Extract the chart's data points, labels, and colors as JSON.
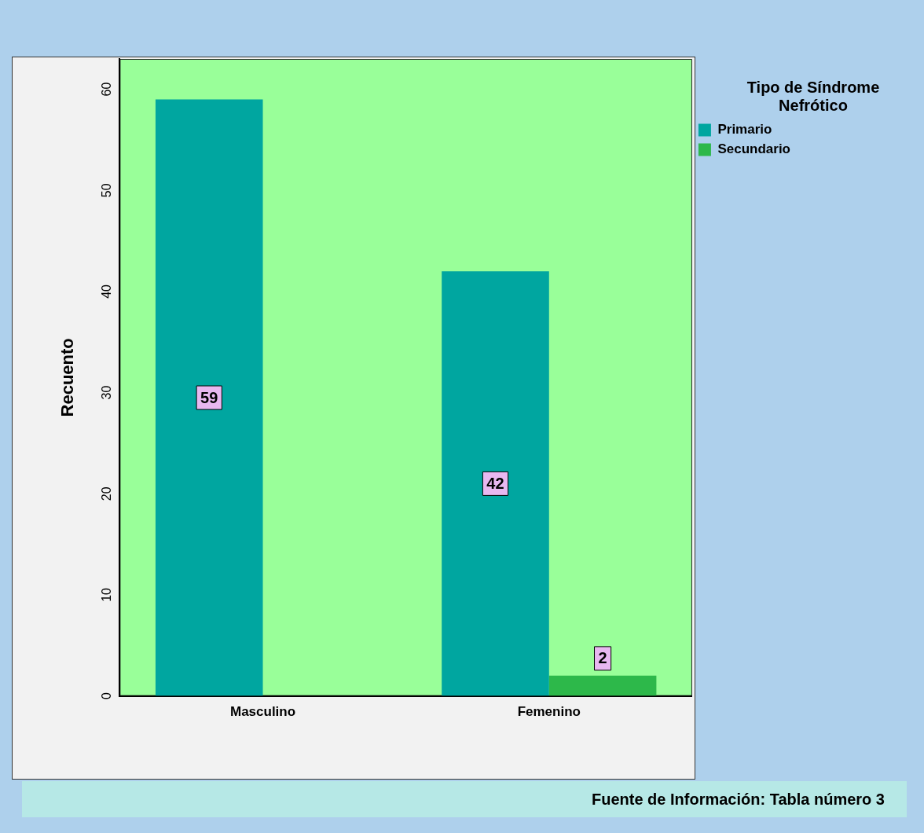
{
  "chart_data": {
    "type": "bar",
    "categories": [
      "Masculino",
      "Femenino"
    ],
    "series": [
      {
        "name": "Primario",
        "color": "#00a6a0",
        "values": [
          59,
          42
        ],
        "value_labels": [
          "59",
          "42"
        ]
      },
      {
        "name": "Secundario",
        "color": "#2db84a",
        "values": [
          0,
          2
        ],
        "value_labels": [
          null,
          "2"
        ]
      }
    ],
    "ylabel": "Recuento",
    "legend_title": "Tipo de Síndrome Nefrótico",
    "legend": "top right",
    "grid": false,
    "ylim": [
      0,
      63
    ],
    "yticks": [
      0,
      10,
      20,
      30,
      40,
      50,
      60
    ],
    "annotations": [
      "Fuente de Información: Tabla número 3"
    ]
  }
}
